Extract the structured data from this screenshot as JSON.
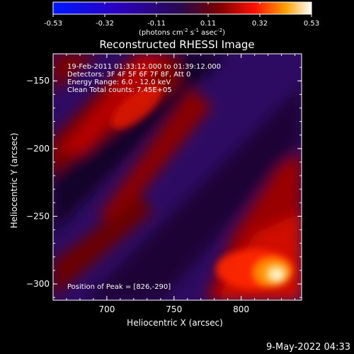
{
  "colorbar": {
    "ticks": [
      "-0.53",
      "-0.32",
      "-0.11",
      "0.11",
      "0.32",
      "0.53"
    ],
    "unit_prefix": "(photons cm",
    "unit_exp1": "-2",
    "unit_mid": " s",
    "unit_exp2": "-1",
    "unit_mid2": " asec",
    "unit_exp3": "-2",
    "unit_suffix": ")"
  },
  "plot": {
    "title": "Reconstructed RHESSI Image",
    "info_lines": [
      "19-Feb-2011 01:33:12.000 to 01:39:12.000",
      "Detectors: 3F 4F 5F 6F 7F 8F, Att 0",
      "Energy Range: 6.0 - 12.0 keV",
      "Clean     Total counts: 7.45E+05"
    ],
    "peak_label": "Position of Peak = [826,-290]",
    "xlabel": "Heliocentric X (arcsec)",
    "ylabel": "Heliocentric Y (arcsec)",
    "x_ticks": [
      {
        "value": 700,
        "label": "700"
      },
      {
        "value": 750,
        "label": "750"
      },
      {
        "value": 800,
        "label": "800"
      }
    ],
    "y_ticks": [
      {
        "value": -150,
        "label": "−150"
      },
      {
        "value": -200,
        "label": "−200"
      },
      {
        "value": -250,
        "label": "−250"
      },
      {
        "value": -300,
        "label": "−300"
      }
    ],
    "xlim": [
      660,
      845
    ],
    "ylim": [
      -312,
      -130
    ],
    "peak": {
      "x": 826,
      "y": -290
    }
  },
  "footer": {
    "date": "9-May-2022 04:33"
  },
  "colors": {
    "background": "#000000",
    "text": "#ffffff"
  }
}
